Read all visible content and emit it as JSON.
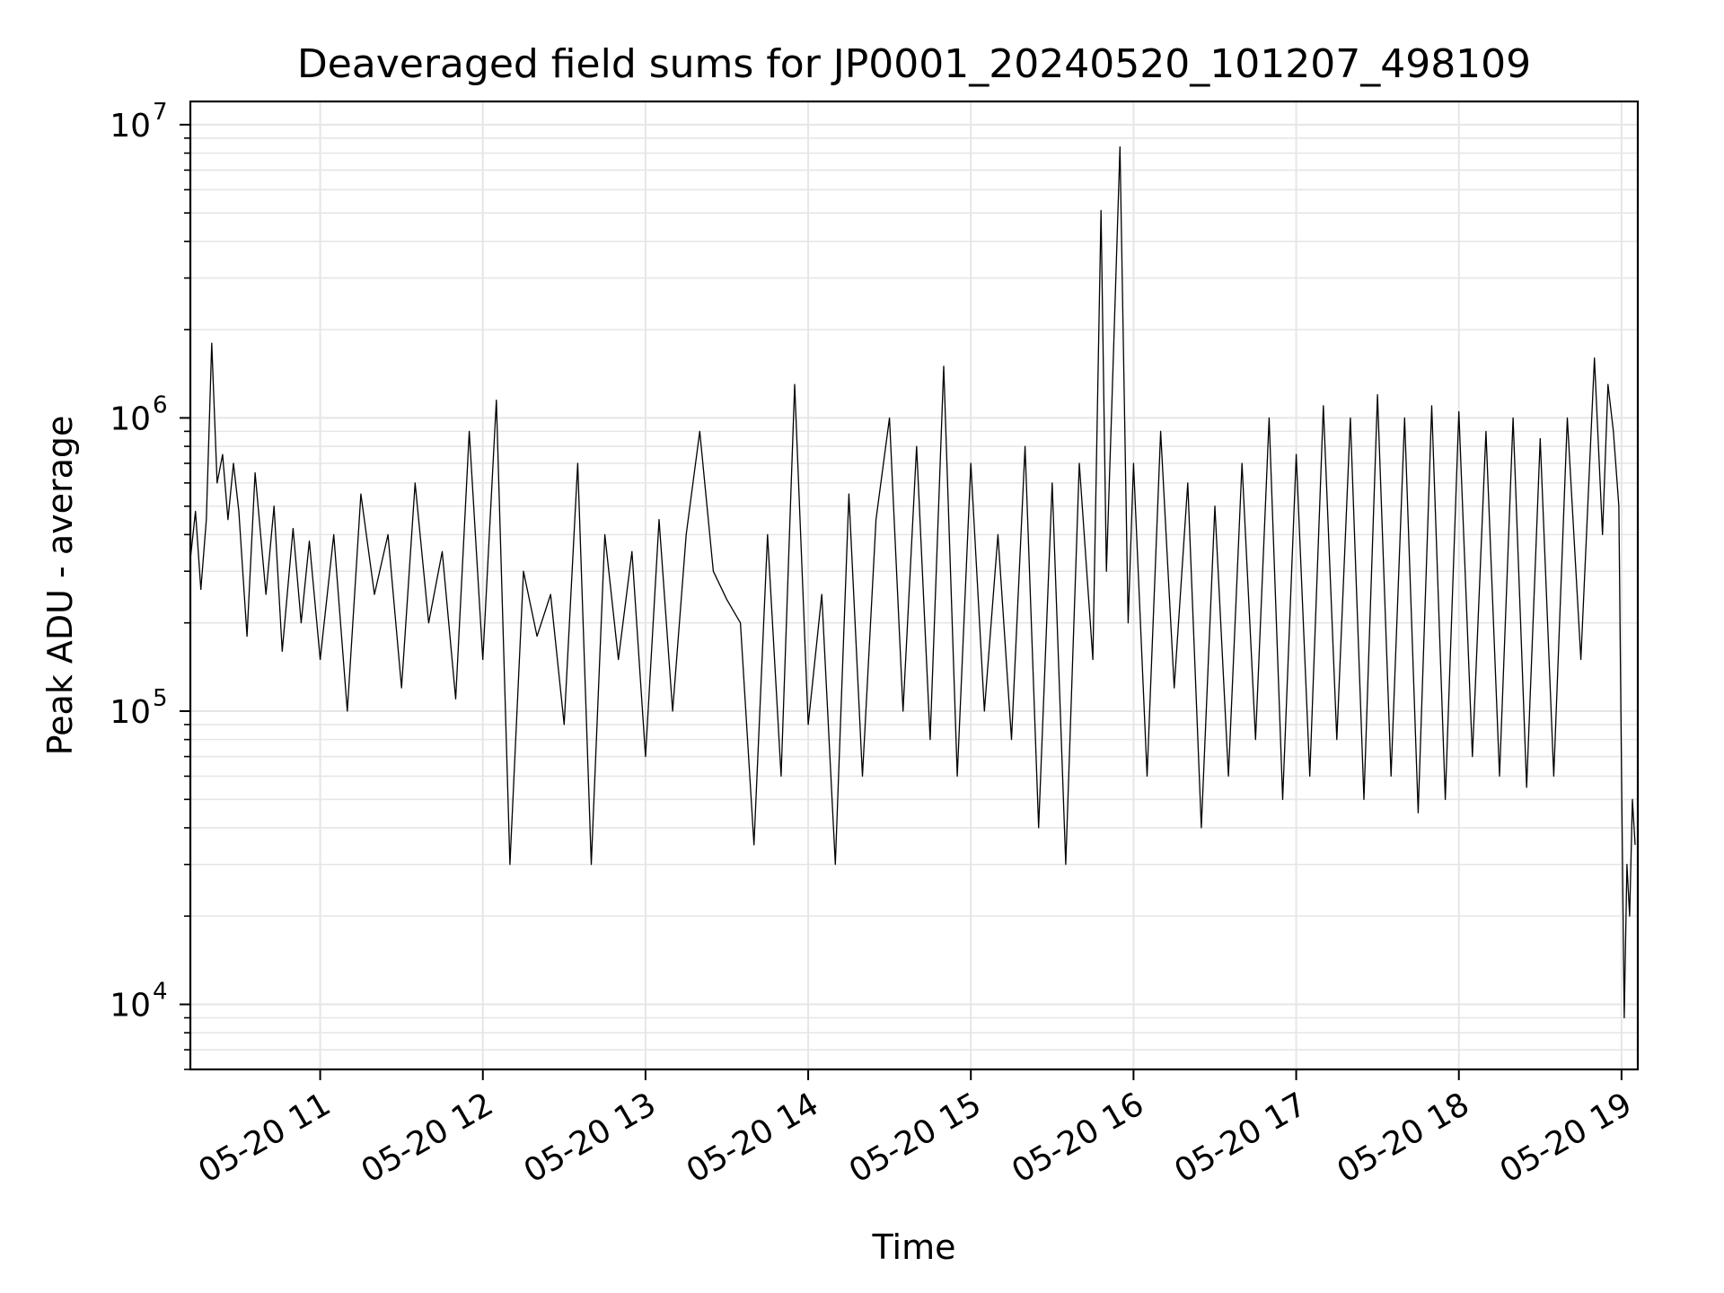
{
  "chart_data": {
    "type": "line",
    "title": "Deaveraged field sums for JP0001_20240520_101207_498109",
    "xlabel": "Time",
    "ylabel": "Peak ADU - average",
    "yscale": "log",
    "ylim": [
      6000,
      12000000
    ],
    "xlim": [
      "2024-05-20T10:12:07",
      "2024-05-20T19:06:00"
    ],
    "grid": true,
    "line_color": "#000000",
    "grid_color": "#e6e6e6",
    "x_ticks": [
      {
        "value": "2024-05-20T11:00:00",
        "label": "05-20 11"
      },
      {
        "value": "2024-05-20T12:00:00",
        "label": "05-20 12"
      },
      {
        "value": "2024-05-20T13:00:00",
        "label": "05-20 13"
      },
      {
        "value": "2024-05-20T14:00:00",
        "label": "05-20 14"
      },
      {
        "value": "2024-05-20T15:00:00",
        "label": "05-20 15"
      },
      {
        "value": "2024-05-20T16:00:00",
        "label": "05-20 16"
      },
      {
        "value": "2024-05-20T17:00:00",
        "label": "05-20 17"
      },
      {
        "value": "2024-05-20T18:00:00",
        "label": "05-20 18"
      },
      {
        "value": "2024-05-20T19:00:00",
        "label": "05-20 19"
      }
    ],
    "y_ticks": [
      {
        "value": 10000,
        "base": "10",
        "exp": "4"
      },
      {
        "value": 100000,
        "base": "10",
        "exp": "5"
      },
      {
        "value": 1000000,
        "base": "10",
        "exp": "6"
      },
      {
        "value": 10000000,
        "base": "10",
        "exp": "7"
      }
    ],
    "series": [
      {
        "x": [
          "2024-05-20T10:12:07",
          "2024-05-20T10:14:00",
          "2024-05-20T10:16:00",
          "2024-05-20T10:18:00",
          "2024-05-20T10:20:00",
          "2024-05-20T10:22:00",
          "2024-05-20T10:24:00",
          "2024-05-20T10:26:00",
          "2024-05-20T10:28:00",
          "2024-05-20T10:30:00",
          "2024-05-20T10:33:00",
          "2024-05-20T10:36:00",
          "2024-05-20T10:40:00",
          "2024-05-20T10:43:00",
          "2024-05-20T10:46:00",
          "2024-05-20T10:50:00",
          "2024-05-20T10:53:00",
          "2024-05-20T10:56:00",
          "2024-05-20T11:00:00",
          "2024-05-20T11:05:00",
          "2024-05-20T11:10:00",
          "2024-05-20T11:15:00",
          "2024-05-20T11:20:00",
          "2024-05-20T11:25:00",
          "2024-05-20T11:30:00",
          "2024-05-20T11:35:00",
          "2024-05-20T11:40:00",
          "2024-05-20T11:45:00",
          "2024-05-20T11:50:00",
          "2024-05-20T11:55:00",
          "2024-05-20T12:00:00",
          "2024-05-20T12:05:00",
          "2024-05-20T12:10:00",
          "2024-05-20T12:15:00",
          "2024-05-20T12:20:00",
          "2024-05-20T12:25:00",
          "2024-05-20T12:30:00",
          "2024-05-20T12:35:00",
          "2024-05-20T12:40:00",
          "2024-05-20T12:45:00",
          "2024-05-20T12:50:00",
          "2024-05-20T12:55:00",
          "2024-05-20T13:00:00",
          "2024-05-20T13:05:00",
          "2024-05-20T13:10:00",
          "2024-05-20T13:15:00",
          "2024-05-20T13:20:00",
          "2024-05-20T13:25:00",
          "2024-05-20T13:30:00",
          "2024-05-20T13:35:00",
          "2024-05-20T13:40:00",
          "2024-05-20T13:45:00",
          "2024-05-20T13:50:00",
          "2024-05-20T13:55:00",
          "2024-05-20T14:00:00",
          "2024-05-20T14:05:00",
          "2024-05-20T14:10:00",
          "2024-05-20T14:15:00",
          "2024-05-20T14:20:00",
          "2024-05-20T14:25:00",
          "2024-05-20T14:30:00",
          "2024-05-20T14:35:00",
          "2024-05-20T14:40:00",
          "2024-05-20T14:45:00",
          "2024-05-20T14:50:00",
          "2024-05-20T14:55:00",
          "2024-05-20T15:00:00",
          "2024-05-20T15:05:00",
          "2024-05-20T15:10:00",
          "2024-05-20T15:15:00",
          "2024-05-20T15:20:00",
          "2024-05-20T15:25:00",
          "2024-05-20T15:30:00",
          "2024-05-20T15:35:00",
          "2024-05-20T15:40:00",
          "2024-05-20T15:45:00",
          "2024-05-20T15:48:00",
          "2024-05-20T15:50:00",
          "2024-05-20T15:52:00",
          "2024-05-20T15:55:00",
          "2024-05-20T15:58:00",
          "2024-05-20T16:00:00",
          "2024-05-20T16:05:00",
          "2024-05-20T16:10:00",
          "2024-05-20T16:15:00",
          "2024-05-20T16:20:00",
          "2024-05-20T16:25:00",
          "2024-05-20T16:30:00",
          "2024-05-20T16:35:00",
          "2024-05-20T16:40:00",
          "2024-05-20T16:45:00",
          "2024-05-20T16:50:00",
          "2024-05-20T16:55:00",
          "2024-05-20T17:00:00",
          "2024-05-20T17:05:00",
          "2024-05-20T17:10:00",
          "2024-05-20T17:15:00",
          "2024-05-20T17:20:00",
          "2024-05-20T17:25:00",
          "2024-05-20T17:30:00",
          "2024-05-20T17:35:00",
          "2024-05-20T17:40:00",
          "2024-05-20T17:45:00",
          "2024-05-20T17:50:00",
          "2024-05-20T17:55:00",
          "2024-05-20T18:00:00",
          "2024-05-20T18:05:00",
          "2024-05-20T18:10:00",
          "2024-05-20T18:15:00",
          "2024-05-20T18:20:00",
          "2024-05-20T18:25:00",
          "2024-05-20T18:30:00",
          "2024-05-20T18:35:00",
          "2024-05-20T18:40:00",
          "2024-05-20T18:45:00",
          "2024-05-20T18:50:00",
          "2024-05-20T18:53:00",
          "2024-05-20T18:55:00",
          "2024-05-20T18:57:00",
          "2024-05-20T18:59:00",
          "2024-05-20T19:00:00",
          "2024-05-20T19:01:00",
          "2024-05-20T19:02:00",
          "2024-05-20T19:03:00",
          "2024-05-20T19:04:00",
          "2024-05-20T19:05:00"
        ],
        "y": [
          330000,
          480000,
          260000,
          450000,
          1800000,
          600000,
          750000,
          450000,
          700000,
          480000,
          180000,
          650000,
          250000,
          500000,
          160000,
          420000,
          200000,
          380000,
          150000,
          400000,
          100000,
          550000,
          250000,
          400000,
          120000,
          600000,
          200000,
          350000,
          110000,
          900000,
          150000,
          1150000,
          30000,
          300000,
          180000,
          250000,
          90000,
          700000,
          30000,
          400000,
          150000,
          350000,
          70000,
          450000,
          100000,
          400000,
          900000,
          300000,
          240000,
          200000,
          35000,
          400000,
          60000,
          1300000,
          90000,
          250000,
          30000,
          550000,
          60000,
          450000,
          1000000,
          100000,
          800000,
          80000,
          1500000,
          60000,
          700000,
          100000,
          400000,
          80000,
          800000,
          40000,
          600000,
          30000,
          700000,
          150000,
          5100000,
          300000,
          1100000,
          8400000,
          200000,
          700000,
          60000,
          900000,
          120000,
          600000,
          40000,
          500000,
          60000,
          700000,
          80000,
          1000000,
          50000,
          750000,
          60000,
          1100000,
          80000,
          1000000,
          50000,
          1200000,
          60000,
          1000000,
          45000,
          1100000,
          50000,
          1050000,
          70000,
          900000,
          60000,
          1000000,
          55000,
          850000,
          60000,
          1000000,
          150000,
          1600000,
          400000,
          1300000,
          900000,
          500000,
          60000,
          9000,
          30000,
          20000,
          50000,
          35000
        ]
      }
    ]
  }
}
